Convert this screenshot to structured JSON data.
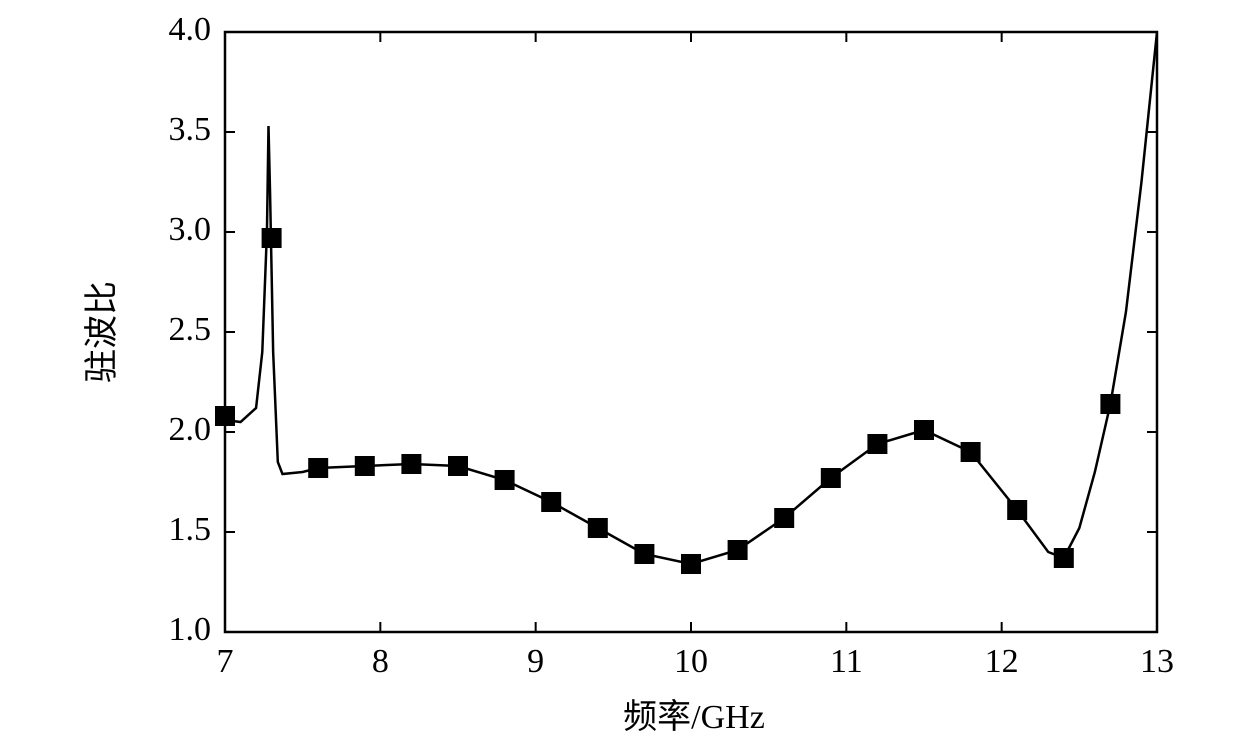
{
  "chart_data": {
    "type": "line",
    "xlabel": "频率/GHz",
    "ylabel": "驻波比",
    "xlim": [
      7,
      13
    ],
    "ylim": [
      1,
      4
    ],
    "xticks": [
      7,
      8,
      9,
      10,
      11,
      12,
      13
    ],
    "yticks": [
      {
        "value": 1,
        "label": "1.0"
      },
      {
        "value": 1.5,
        "label": "1.5"
      },
      {
        "value": 2,
        "label": "2.0"
      },
      {
        "value": 2.5,
        "label": "2.5"
      },
      {
        "value": 3,
        "label": "3.0"
      },
      {
        "value": 3.5,
        "label": "3.5"
      },
      {
        "value": 4,
        "label": "4.0"
      }
    ],
    "series": [
      {
        "color": "#000000",
        "marker": "none",
        "line": true,
        "x": [
          7.0,
          7.1,
          7.2,
          7.24,
          7.27,
          7.28,
          7.29,
          7.31,
          7.34,
          7.37,
          7.5,
          7.6,
          7.9,
          8.2,
          8.5,
          8.8,
          9.1,
          9.4,
          9.7,
          10.0,
          10.3,
          10.6,
          10.9,
          11.2,
          11.5,
          11.8,
          12.1,
          12.3,
          12.4,
          12.5,
          12.6,
          12.7,
          12.8,
          12.9,
          13.0
        ],
        "values": [
          2.06,
          2.05,
          2.12,
          2.4,
          3.0,
          3.53,
          3.2,
          2.4,
          1.85,
          1.79,
          1.8,
          1.82,
          1.83,
          1.84,
          1.83,
          1.76,
          1.65,
          1.52,
          1.39,
          1.34,
          1.41,
          1.57,
          1.77,
          1.94,
          2.01,
          1.9,
          1.61,
          1.4,
          1.37,
          1.52,
          1.8,
          2.14,
          2.6,
          3.25,
          4.0
        ]
      },
      {
        "color": "#000000",
        "marker": "square",
        "line": false,
        "x": [
          7.0,
          7.3,
          7.6,
          7.9,
          8.2,
          8.5,
          8.8,
          9.1,
          9.4,
          9.7,
          10.0,
          10.3,
          10.6,
          10.9,
          11.2,
          11.5,
          11.8,
          12.1,
          12.4,
          12.7
        ],
        "values": [
          2.08,
          2.97,
          1.82,
          1.83,
          1.84,
          1.83,
          1.76,
          1.65,
          1.52,
          1.39,
          1.34,
          1.41,
          1.57,
          1.77,
          1.94,
          2.01,
          1.9,
          1.61,
          1.37,
          2.14
        ]
      }
    ]
  }
}
